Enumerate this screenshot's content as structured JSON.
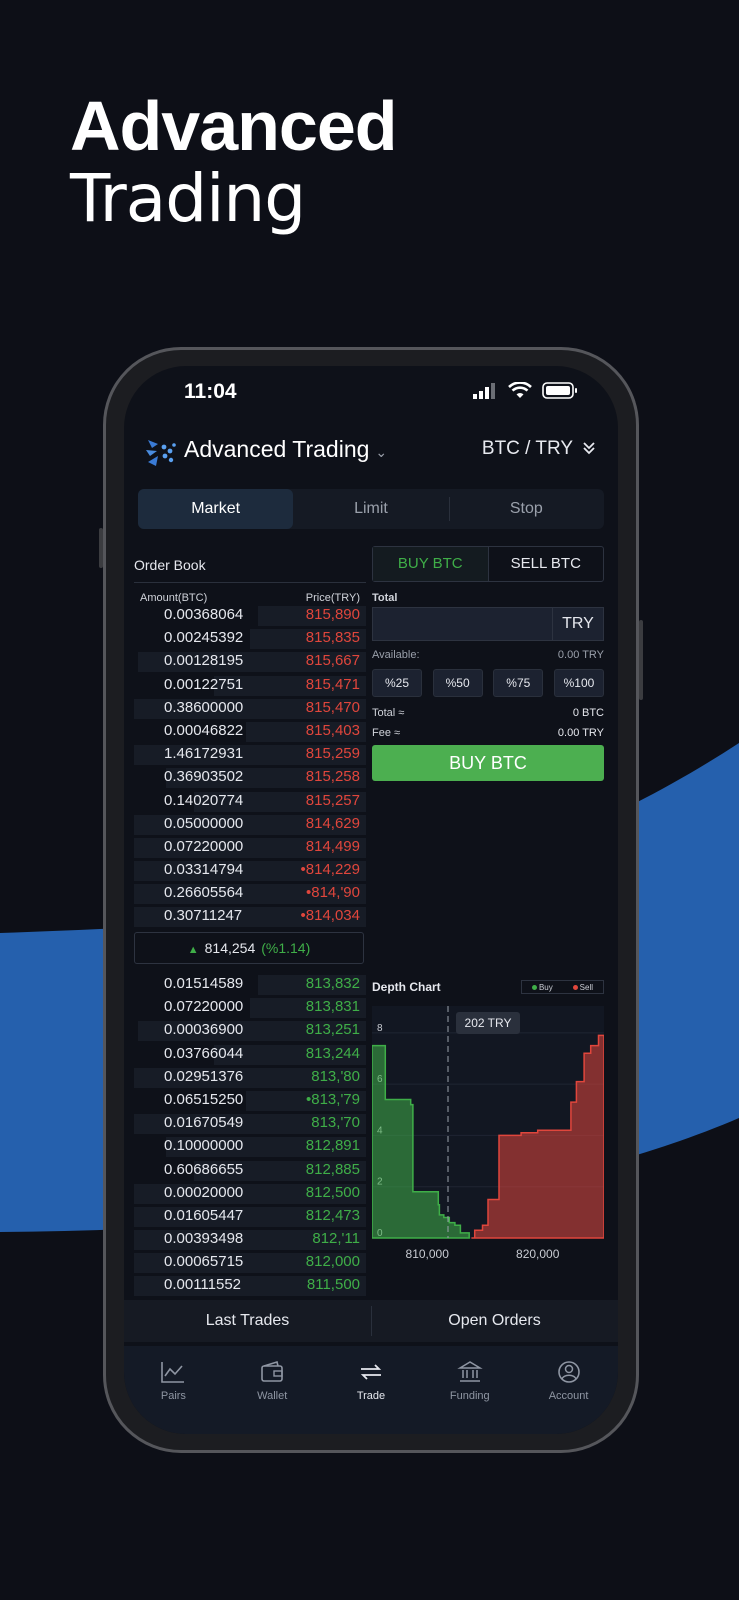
{
  "promo": {
    "line1": "Advanced",
    "line2": "Trading"
  },
  "status": {
    "time": "11:04"
  },
  "header": {
    "title": "Advanced Trading",
    "pair": "BTC / TRY"
  },
  "tabs": [
    {
      "label": "Market"
    },
    {
      "label": "Limit"
    },
    {
      "label": "Stop"
    }
  ],
  "order_book": {
    "title": "Order Book",
    "col_amount": "Amount(BTC)",
    "col_price": "Price(TRY)",
    "sells": [
      {
        "amount": "0.00368064",
        "price": "815,890"
      },
      {
        "amount": "0.00245392",
        "price": "815,835"
      },
      {
        "amount": "0.00128195",
        "price": "815,667"
      },
      {
        "amount": "0.00122751",
        "price": "815,471"
      },
      {
        "amount": "0.38600000",
        "price": "815,470"
      },
      {
        "amount": "0.00046822",
        "price": "815,403"
      },
      {
        "amount": "1.46172931",
        "price": "815,259"
      },
      {
        "amount": "0.36903502",
        "price": "815,258"
      },
      {
        "amount": "0.14020774",
        "price": "815,257"
      },
      {
        "amount": "0.05000000",
        "price": "814,629"
      },
      {
        "amount": "0.07220000",
        "price": "814,499"
      },
      {
        "amount": "0.03314794",
        "price": "•814,229"
      },
      {
        "amount": "0.26605564",
        "price": "•814,'90"
      },
      {
        "amount": "0.30711247",
        "price": "•814,034"
      }
    ],
    "mid_price": "814,254",
    "mid_change": "(%1.14)",
    "buys": [
      {
        "amount": "0.01514589",
        "price": "813,832"
      },
      {
        "amount": "0.07220000",
        "price": "813,831"
      },
      {
        "amount": "0.00036900",
        "price": "813,251"
      },
      {
        "amount": "0.03766044",
        "price": "813,244"
      },
      {
        "amount": "0.02951376",
        "price": "813,'80"
      },
      {
        "amount": "0.06515250",
        "price": "•813,'79"
      },
      {
        "amount": "0.01670549",
        "price": "813,'70"
      },
      {
        "amount": "0.10000000",
        "price": "812,891"
      },
      {
        "amount": "0.60686655",
        "price": "812,885"
      },
      {
        "amount": "0.00020000",
        "price": "812,500"
      },
      {
        "amount": "0.01605447",
        "price": "812,473"
      },
      {
        "amount": "0.00393498",
        "price": "812,'11"
      },
      {
        "amount": "0.00065715",
        "price": "812,000"
      },
      {
        "amount": "0.00111552",
        "price": "811,500"
      }
    ]
  },
  "trade_form": {
    "buy_tab": "BUY BTC",
    "sell_tab": "SELL BTC",
    "total_label": "Total",
    "total_currency": "TRY",
    "available_label": "Available:",
    "available_value": "0.00 TRY",
    "percents": [
      "%25",
      "%50",
      "%75",
      "%100"
    ],
    "total_eq_label": "Total ≈",
    "total_eq_value": "0 BTC",
    "fee_label": "Fee ≈",
    "fee_value": "0.00 TRY",
    "submit": "BUY BTC"
  },
  "colors": {
    "buy": "#3fae48",
    "sell": "#e0463c",
    "accent": "#2a64b5"
  },
  "depth_chart": {
    "title": "Depth Chart",
    "legend_buy": "Buy",
    "legend_sell": "Sell",
    "tooltip": "202 TRY",
    "yticks": [
      "8",
      "6",
      "4",
      "2",
      "0"
    ],
    "xticks": [
      "810,000",
      "820,000"
    ]
  },
  "chart_data": {
    "type": "area",
    "title": "Depth Chart",
    "x_range": [
      805000,
      826000
    ],
    "ylim": [
      0,
      8.5
    ],
    "series": [
      {
        "name": "Buy",
        "x": [
          805000,
          806000,
          806200,
          808500,
          808700,
          811000,
          811100,
          811500,
          812000,
          812500,
          813000,
          813800
        ],
        "values": [
          7.5,
          7.5,
          5.4,
          5.2,
          1.8,
          1.3,
          0.9,
          0.8,
          0.6,
          0.5,
          0.2,
          0
        ]
      },
      {
        "name": "Sell",
        "x": [
          814000,
          814300,
          815000,
          815500,
          816500,
          818500,
          820000,
          822000,
          823000,
          823500,
          824200,
          824800,
          825500
        ],
        "values": [
          0,
          0.3,
          0.5,
          1.5,
          4,
          4.1,
          4.2,
          4.2,
          5.3,
          6.1,
          7.2,
          7.5,
          7.9
        ]
      }
    ]
  },
  "bottom_tabs": [
    "Last Trades",
    "Open Orders"
  ],
  "nav": [
    {
      "label": "Pairs",
      "icon": "chart-icon"
    },
    {
      "label": "Wallet",
      "icon": "wallet-icon"
    },
    {
      "label": "Trade",
      "icon": "swap-icon"
    },
    {
      "label": "Funding",
      "icon": "bank-icon"
    },
    {
      "label": "Account",
      "icon": "user-icon"
    }
  ]
}
